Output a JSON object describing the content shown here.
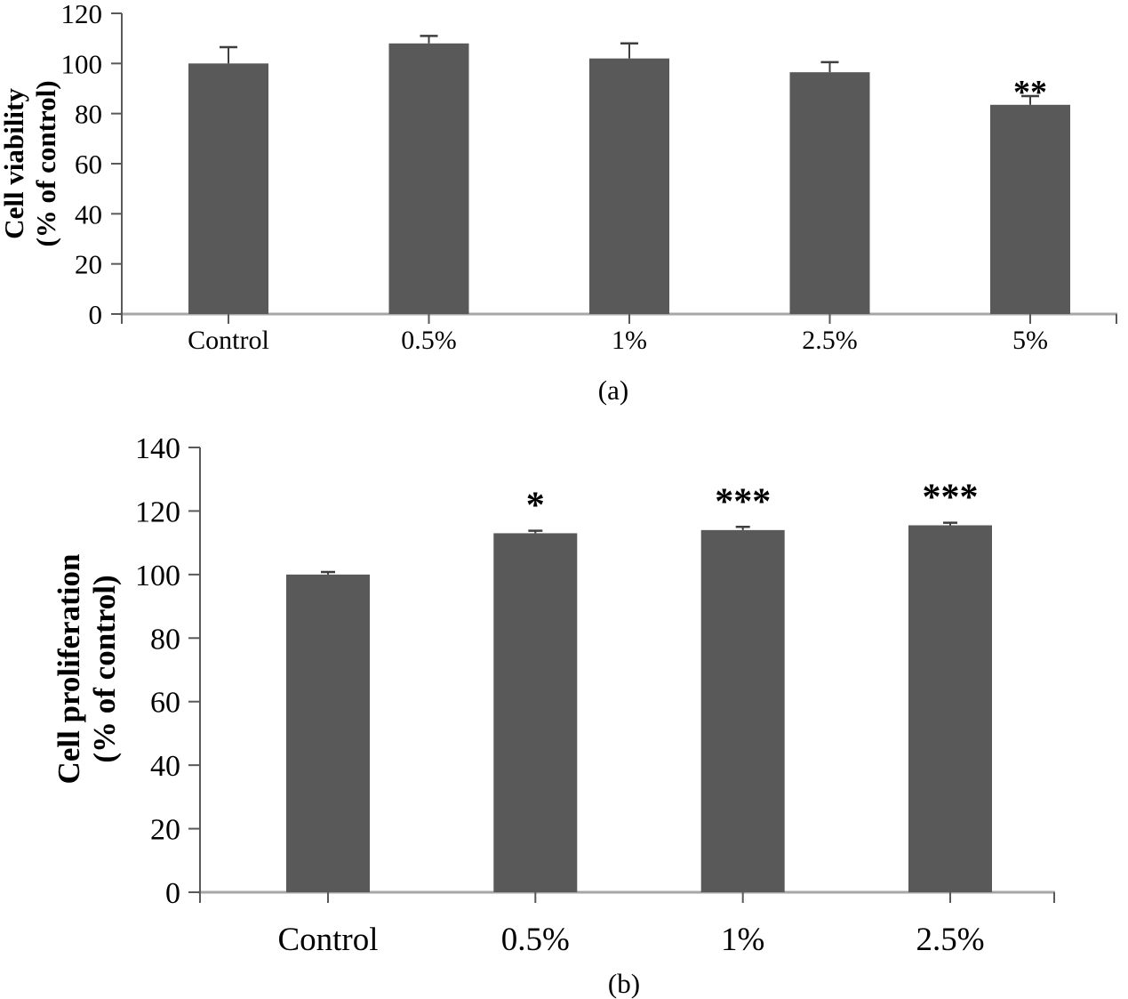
{
  "figure": {
    "description": "Two-panel bar chart figure",
    "panels": [
      {
        "id": "chart-a",
        "caption": "(a)"
      },
      {
        "id": "chart-b",
        "caption": "(b)"
      }
    ]
  },
  "chart_data": [
    {
      "type": "bar",
      "panel": "a",
      "caption": "(a)",
      "title": "",
      "xlabel": "",
      "ylabel_lines": [
        "Cell viability",
        "(% of control)"
      ],
      "categories": [
        "Control",
        "0.5%",
        "1%",
        "2.5%",
        "5%"
      ],
      "values": [
        100,
        108,
        102,
        96.5,
        83.5
      ],
      "errors_plus": [
        6.5,
        3,
        6,
        4,
        3.5
      ],
      "significance": [
        "",
        "",
        "",
        "",
        "**"
      ],
      "ylim": [
        0,
        120
      ],
      "ytick_step": 20,
      "grid": false,
      "legend": false,
      "bar_color": "#595959",
      "error_color": "#3f3f3f",
      "axis_line_color": "#a6a6a6",
      "tick_color": "#595959"
    },
    {
      "type": "bar",
      "panel": "b",
      "caption": "(b)",
      "title": "",
      "xlabel": "",
      "ylabel_lines": [
        "Cell proliferation",
        "(% of control)"
      ],
      "categories": [
        "Control",
        "0.5%",
        "1%",
        "2.5%"
      ],
      "values": [
        100,
        113,
        114,
        115.5
      ],
      "errors_plus": [
        0.8,
        0.8,
        1.0,
        0.8
      ],
      "significance": [
        "",
        "*",
        "***",
        "***"
      ],
      "ylim": [
        0,
        140
      ],
      "ytick_step": 20,
      "grid": false,
      "legend": false,
      "bar_color": "#595959",
      "error_color": "#3f3f3f",
      "axis_line_color": "#a6a6a6",
      "tick_color": "#595959"
    }
  ]
}
